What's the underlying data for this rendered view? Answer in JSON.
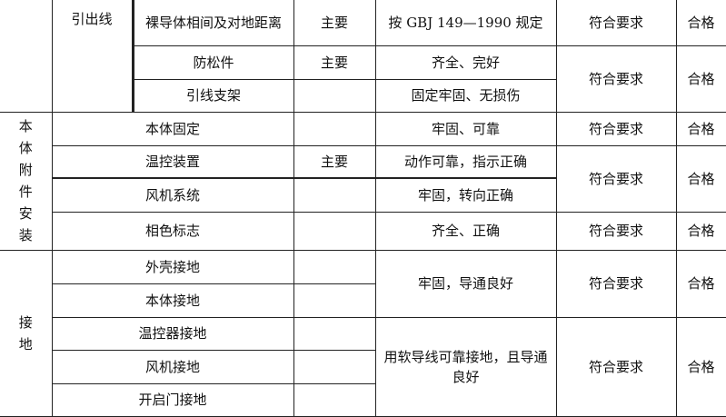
{
  "rows": [
    {
      "group": "",
      "sub": "引出线",
      "item": "裸导体相间及对地距离",
      "level": "主要",
      "standard": "按 GBJ 149—1990 规定",
      "check": "符合要求",
      "result": "合格"
    },
    {
      "item": "防松件",
      "level": "主要",
      "standard": "齐全、完好",
      "check": "符合要求",
      "result": "合格"
    },
    {
      "item": "引线支架",
      "level": "",
      "standard": "固定牢固、无损伤"
    },
    {
      "group": "本体附件安装",
      "item": "本体固定",
      "level": "",
      "standard": "牢固、可靠",
      "check": "符合要求",
      "result": "合格"
    },
    {
      "item": "温控装置",
      "level": "主要",
      "standard": "动作可靠，指示正确",
      "check": "符合要求",
      "result": "合格"
    },
    {
      "item": "风机系统",
      "level": "",
      "standard": "牢固，转向正确"
    },
    {
      "item": "相色标志",
      "level": "",
      "standard": "齐全、正确",
      "check": "符合要求",
      "result": "合格"
    },
    {
      "group": "接地",
      "item": "外壳接地",
      "level": "",
      "standard": "牢固，导通良好",
      "check": "符合要求",
      "result": "合格"
    },
    {
      "item": "本体接地",
      "level": ""
    },
    {
      "item": "温控器接地",
      "level": "",
      "standard": "用软导线可靠接地，且导通良好",
      "check": "符合要求",
      "result": "合格"
    },
    {
      "item": "风机接地",
      "level": ""
    },
    {
      "item": "开启门接地",
      "level": ""
    }
  ]
}
